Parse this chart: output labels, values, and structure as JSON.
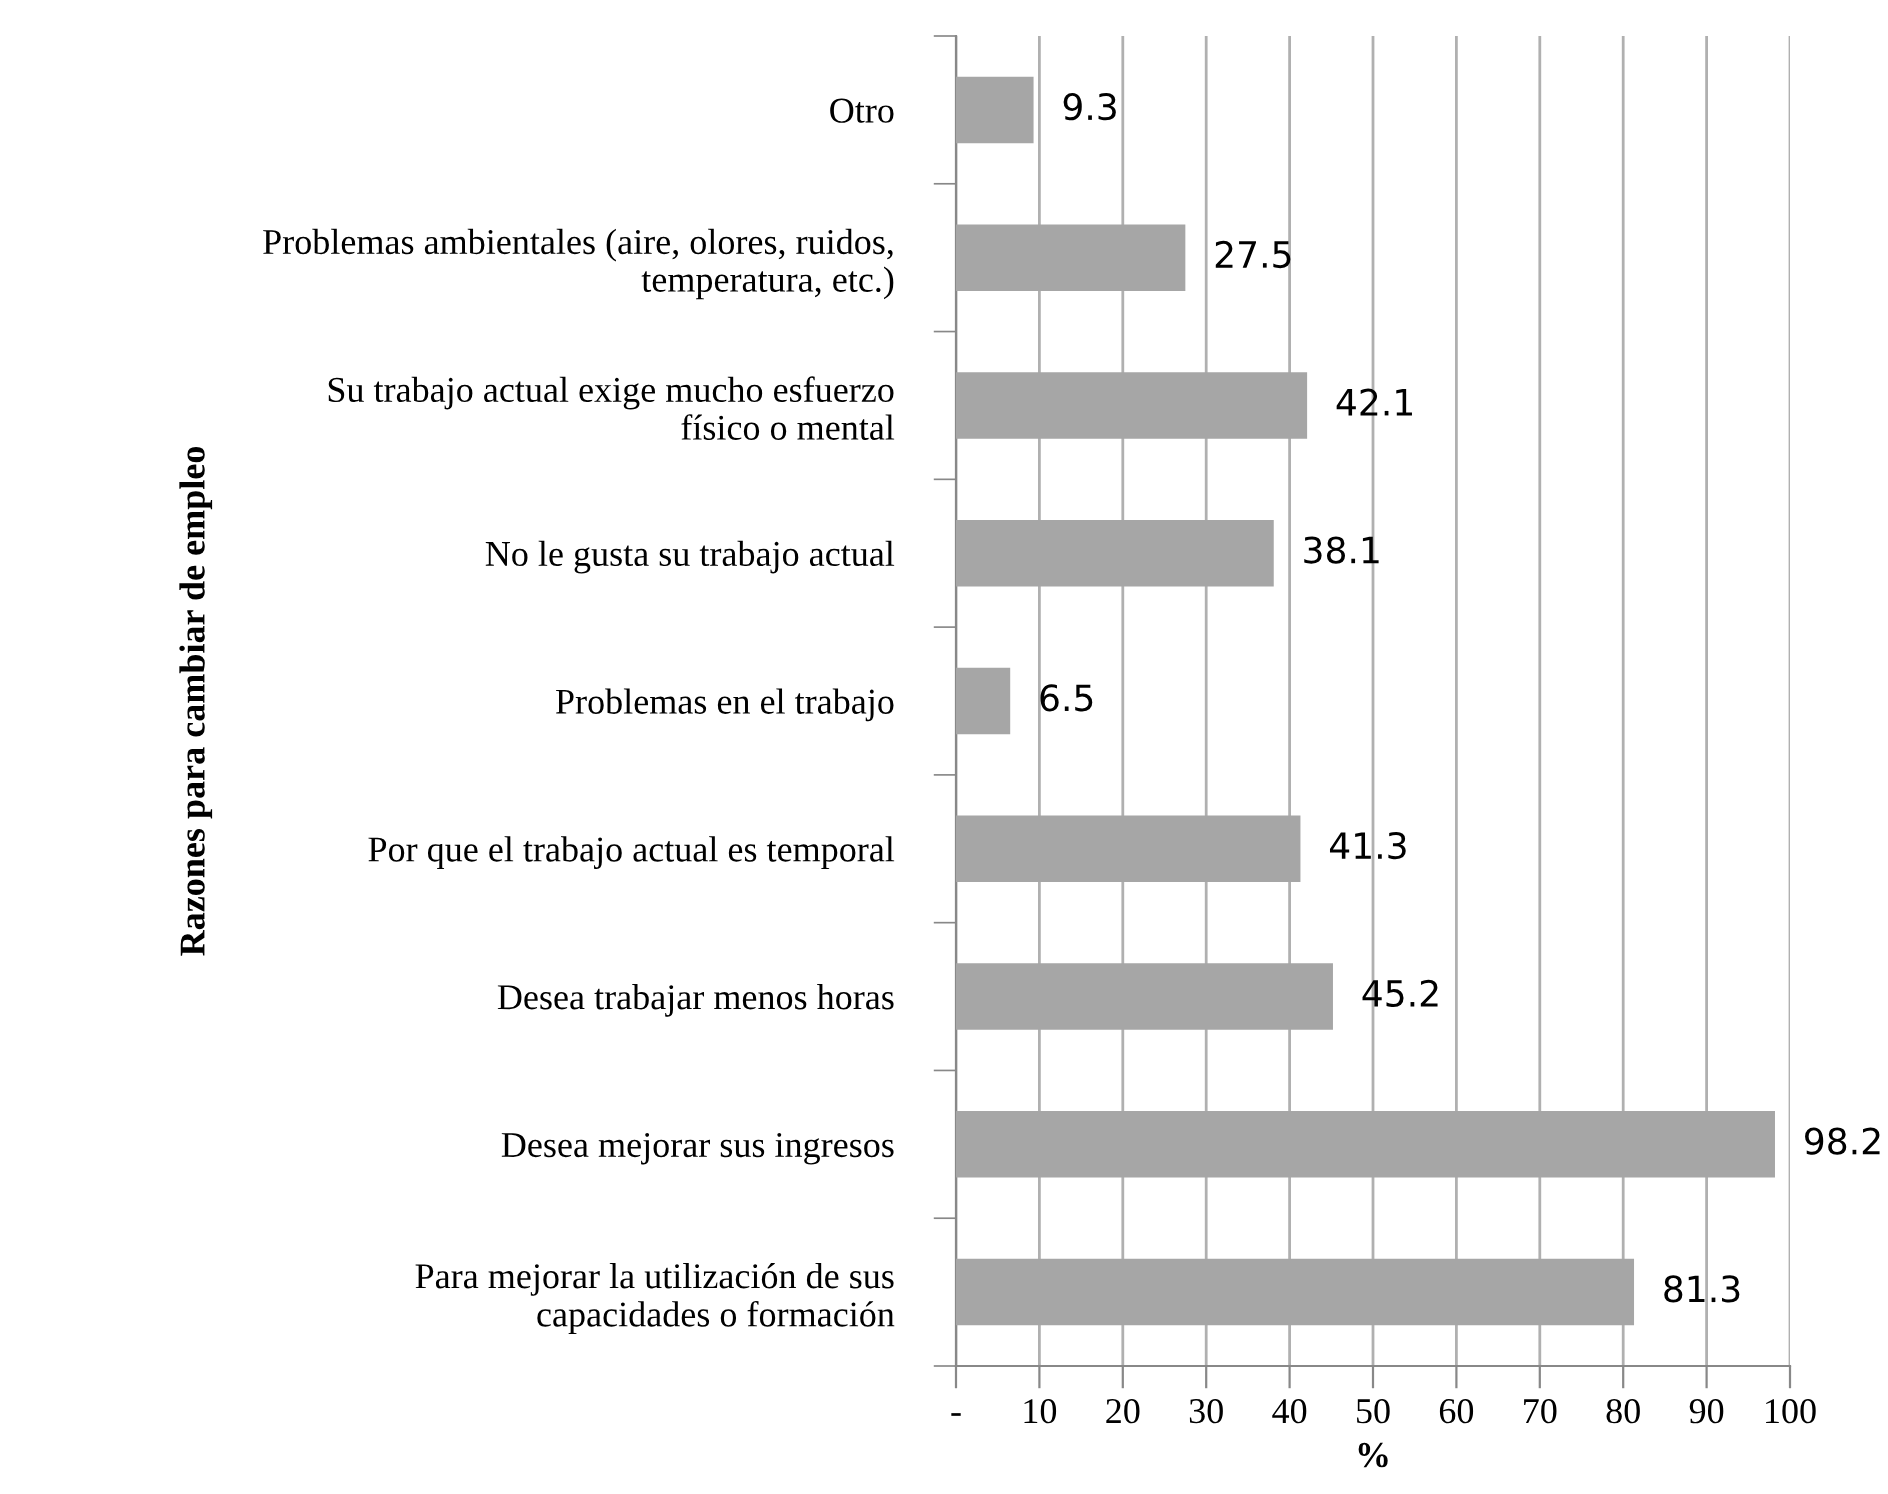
{
  "chart_data": {
    "type": "bar",
    "orientation": "horizontal",
    "xlabel": "%",
    "ylabel": "Razones para cambiar de empleo",
    "categories": [
      "Otro",
      "Problemas ambientales (aire, olores, ruidos,\ntemperatura, etc.)",
      "Su trabajo actual exige mucho esfuerzo\nfísico o mental",
      "No le gusta su trabajo actual",
      "Problemas en el trabajo",
      "Por que el trabajo actual es temporal",
      "Desea trabajar menos horas",
      "Desea mejorar sus ingresos",
      "Para mejorar la utilización de sus\ncapacidades o formación"
    ],
    "values": [
      9.3,
      27.5,
      42.1,
      38.1,
      6.5,
      41.3,
      45.2,
      98.2,
      81.3
    ],
    "color": "#a6a6a6",
    "data_labels": true,
    "grid": "x",
    "xlim": [
      0,
      100
    ],
    "xticks": [
      {
        "value": 0,
        "label": "-"
      },
      10,
      20,
      30,
      40,
      50,
      60,
      70,
      80,
      90,
      100
    ]
  }
}
